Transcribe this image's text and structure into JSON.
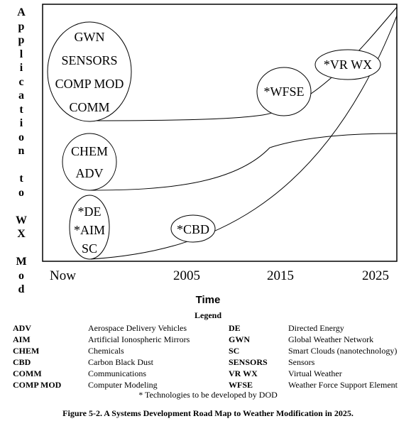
{
  "axis": {
    "y_label_letters": [
      "A",
      "p",
      "p",
      "l",
      "i",
      "c",
      "a",
      "t",
      "i",
      "o",
      "n",
      "",
      "t",
      "o",
      "",
      "W",
      "X",
      "",
      "M",
      "o",
      "d"
    ],
    "x_title": "Time",
    "x_ticks": [
      "Now",
      "2005",
      "2015",
      "2025"
    ]
  },
  "bubbles": {
    "top": [
      "GWN",
      "SENSORS",
      "COMP MOD",
      "COMM"
    ],
    "middle": [
      "CHEM",
      "ADV"
    ],
    "bottom": [
      "*DE",
      "*AIM",
      "SC"
    ],
    "cbd": "*CBD",
    "wfse": "*WFSE",
    "vrwx": "*VR WX"
  },
  "legend": {
    "title": "Legend",
    "left": [
      {
        "abbr": "ADV",
        "desc": "Aerospace Delivery Vehicles"
      },
      {
        "abbr": "AIM",
        "desc": "Artificial Ionospheric Mirrors"
      },
      {
        "abbr": "CHEM",
        "desc": "Chemicals"
      },
      {
        "abbr": "CBD",
        "desc": "Carbon Black Dust"
      },
      {
        "abbr": "COMM",
        "desc": "Communications"
      },
      {
        "abbr": "COMP MOD",
        "desc": "Computer Modeling"
      }
    ],
    "right": [
      {
        "abbr": "DE",
        "desc": "Directed Energy"
      },
      {
        "abbr": "GWN",
        "desc": "Global Weather Network"
      },
      {
        "abbr": "SC",
        "desc": "Smart Clouds (nanotechnology)"
      },
      {
        "abbr": "SENSORS",
        "desc": "Sensors"
      },
      {
        "abbr": "VR WX",
        "desc": "Virtual Weather"
      },
      {
        "abbr": "WFSE",
        "desc": "Weather Force Support Element"
      }
    ]
  },
  "footnote": "*  Technologies to be developed by DOD",
  "caption": "Figure 5-2.  A Systems Development Road Map to Weather Modification in 2025."
}
